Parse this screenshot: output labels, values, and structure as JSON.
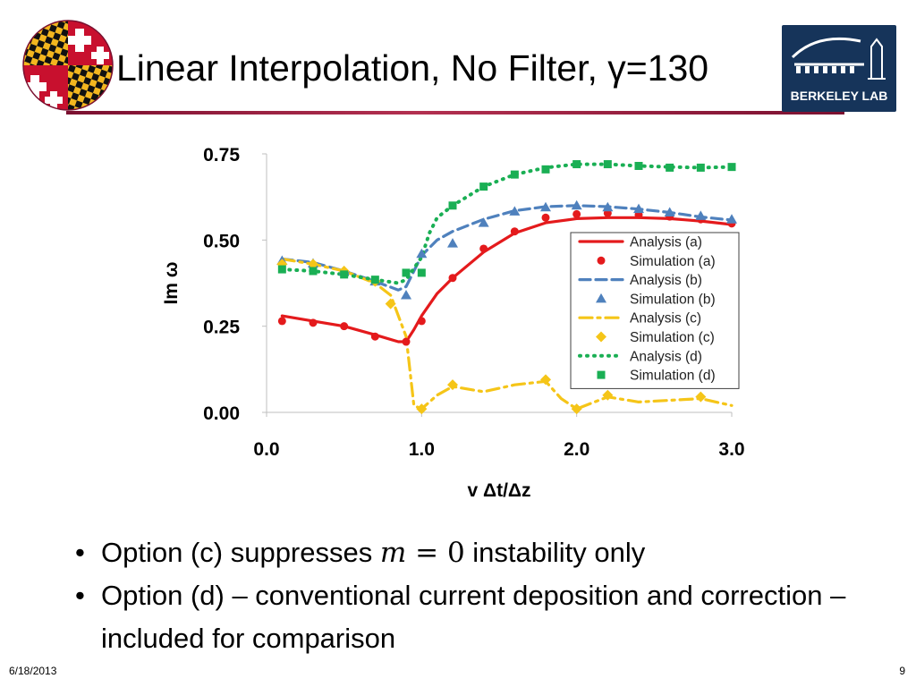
{
  "slide": {
    "title": "Linear Interpolation, No Filter, γ=130",
    "date": "6/18/2013",
    "page_number": "9"
  },
  "logos": {
    "left": {
      "icon": "maryland-flag-globe-icon"
    },
    "right": {
      "icon": "berkeley-lab-building-icon",
      "text": "BERKELEY LAB"
    }
  },
  "colors": {
    "title_rule": "#8b1a3a",
    "series_a": "#e41a1c",
    "series_b": "#4f81bd",
    "series_c": "#f5c518",
    "series_d": "#1aaf54",
    "logo_right_bg": "#16345a"
  },
  "bullets": [
    {
      "prefix": "Option (c) suppresses ",
      "math_var": "m",
      "math_rest": " = 0",
      "suffix": " instability only"
    },
    {
      "text": "Option (d) – conventional current deposition and correction – included for comparison"
    }
  ],
  "chart_data": {
    "type": "line",
    "xlabel": "v Δt/Δz",
    "ylabel": "Im ω",
    "xlim": [
      0.0,
      3.0
    ],
    "ylim": [
      0.0,
      0.75
    ],
    "xticks": [
      "0.0",
      "1.0",
      "2.0",
      "3.0"
    ],
    "yticks": [
      "0.00",
      "0.25",
      "0.50",
      "0.75"
    ],
    "grid": false,
    "legend_position": "right",
    "series": [
      {
        "name": "Analysis (a)",
        "style": "solid-line",
        "color": "#e41a1c",
        "x": [
          0.1,
          0.3,
          0.5,
          0.7,
          0.85,
          0.9,
          0.95,
          1.0,
          1.1,
          1.2,
          1.4,
          1.6,
          1.8,
          2.0,
          2.2,
          2.4,
          2.6,
          2.8,
          3.0
        ],
        "y": [
          0.28,
          0.265,
          0.25,
          0.225,
          0.205,
          0.205,
          0.24,
          0.28,
          0.345,
          0.39,
          0.465,
          0.52,
          0.55,
          0.562,
          0.565,
          0.565,
          0.562,
          0.555,
          0.545
        ]
      },
      {
        "name": "Simulation (a)",
        "style": "circle-marker",
        "color": "#e41a1c",
        "x": [
          0.1,
          0.3,
          0.5,
          0.7,
          0.9,
          1.0,
          1.2,
          1.4,
          1.6,
          1.8,
          2.0,
          2.2,
          2.4,
          2.6,
          2.8,
          3.0
        ],
        "y": [
          0.265,
          0.26,
          0.25,
          0.22,
          0.205,
          0.265,
          0.39,
          0.475,
          0.525,
          0.565,
          0.575,
          0.578,
          0.573,
          0.568,
          0.56,
          0.548
        ]
      },
      {
        "name": "Analysis (b)",
        "style": "dashed-line",
        "color": "#4f81bd",
        "x": [
          0.1,
          0.3,
          0.5,
          0.7,
          0.85,
          0.9,
          0.95,
          1.0,
          1.1,
          1.2,
          1.4,
          1.6,
          1.8,
          2.0,
          2.2,
          2.4,
          2.6,
          2.8,
          3.0
        ],
        "y": [
          0.445,
          0.435,
          0.41,
          0.38,
          0.355,
          0.365,
          0.41,
          0.455,
          0.5,
          0.525,
          0.56,
          0.585,
          0.597,
          0.6,
          0.597,
          0.59,
          0.58,
          0.567,
          0.558
        ]
      },
      {
        "name": "Simulation (b)",
        "style": "triangle-marker",
        "color": "#4f81bd",
        "x": [
          0.1,
          0.3,
          0.5,
          0.7,
          0.9,
          1.0,
          1.2,
          1.4,
          1.6,
          1.8,
          2.0,
          2.2,
          2.4,
          2.6,
          2.8,
          3.0
        ],
        "y": [
          0.44,
          0.432,
          0.41,
          0.38,
          0.34,
          0.46,
          0.49,
          0.55,
          0.583,
          0.595,
          0.6,
          0.595,
          0.59,
          0.58,
          0.57,
          0.56
        ]
      },
      {
        "name": "Analysis (c)",
        "style": "dashdot-line",
        "color": "#f5c518",
        "x": [
          0.1,
          0.3,
          0.5,
          0.7,
          0.8,
          0.9,
          0.95,
          1.0,
          1.1,
          1.2,
          1.4,
          1.6,
          1.8,
          1.9,
          2.0,
          2.2,
          2.4,
          2.6,
          2.8,
          3.0
        ],
        "y": [
          0.445,
          0.43,
          0.41,
          0.375,
          0.34,
          0.22,
          0.02,
          0.01,
          0.05,
          0.075,
          0.06,
          0.08,
          0.09,
          0.04,
          0.01,
          0.045,
          0.03,
          0.035,
          0.04,
          0.02
        ]
      },
      {
        "name": "Simulation (c)",
        "style": "diamond-marker",
        "color": "#f5c518",
        "x": [
          0.1,
          0.3,
          0.5,
          0.7,
          0.8,
          1.0,
          1.2,
          1.8,
          2.0,
          2.2,
          2.8
        ],
        "y": [
          0.43,
          0.43,
          0.41,
          0.38,
          0.315,
          0.01,
          0.08,
          0.095,
          0.01,
          0.05,
          0.045
        ]
      },
      {
        "name": "Analysis (d)",
        "style": "dotted-line",
        "color": "#1aaf54",
        "x": [
          0.1,
          0.3,
          0.5,
          0.7,
          0.85,
          0.9,
          1.0,
          1.05,
          1.1,
          1.2,
          1.4,
          1.6,
          1.8,
          2.0,
          2.2,
          2.4,
          2.6,
          2.8,
          3.0
        ],
        "y": [
          0.415,
          0.41,
          0.4,
          0.385,
          0.375,
          0.385,
          0.45,
          0.52,
          0.565,
          0.6,
          0.655,
          0.69,
          0.71,
          0.72,
          0.72,
          0.715,
          0.712,
          0.71,
          0.712
        ]
      },
      {
        "name": "Simulation (d)",
        "style": "square-marker",
        "color": "#1aaf54",
        "x": [
          0.1,
          0.3,
          0.5,
          0.7,
          0.9,
          1.0,
          1.2,
          1.4,
          1.6,
          1.8,
          2.0,
          2.2,
          2.4,
          2.6,
          2.8,
          3.0
        ],
        "y": [
          0.415,
          0.41,
          0.4,
          0.385,
          0.405,
          0.405,
          0.6,
          0.655,
          0.69,
          0.705,
          0.72,
          0.72,
          0.715,
          0.71,
          0.71,
          0.712
        ]
      }
    ]
  }
}
